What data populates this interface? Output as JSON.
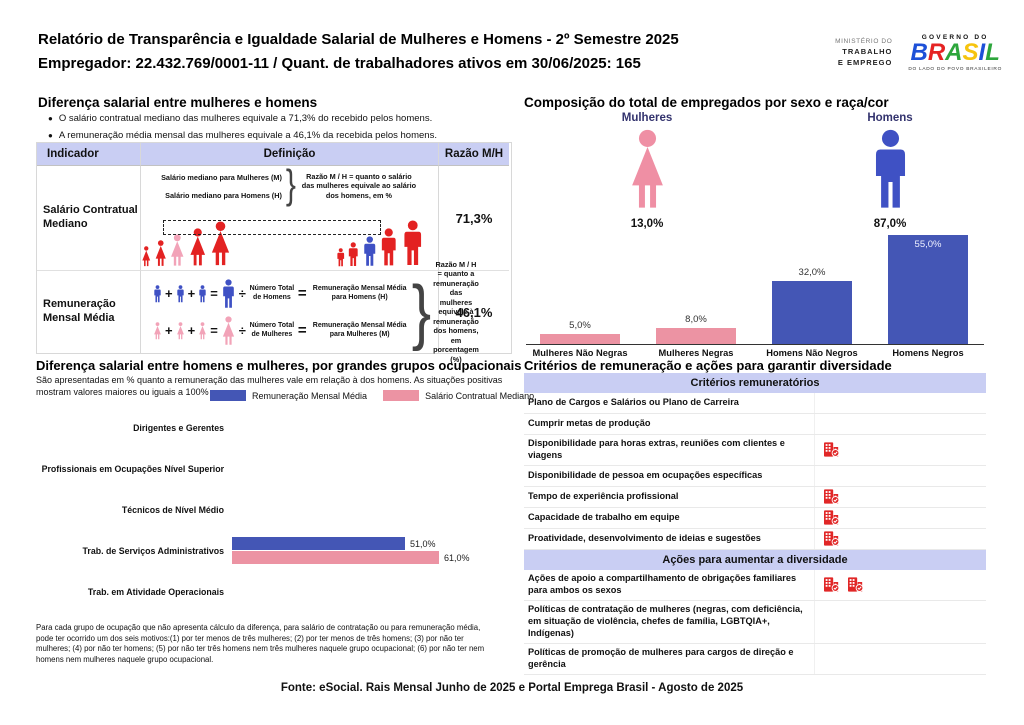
{
  "colors": {
    "accent_blue": "#4456b5",
    "accent_pink": "#ec93a3",
    "figure_red": "#e32222",
    "figure_pink": "#f2a3b8",
    "figure_blue": "#3f51c4",
    "icon_red": "#e12727",
    "header_bg": "#c9cef3",
    "heading_navy": "#33336e"
  },
  "header": {
    "title": "Relatório de Transparência e Igualdade Salarial de Mulheres e Homens - 2º Semestre 2025",
    "subtitle": "Empregador: 22.432.769/0001-11 / Quant. de trabalhadores ativos em 30/06/2025: 165",
    "ministry": {
      "dept": "MINISTÉRIO DO",
      "name1": "TRABALHO",
      "name2": "E EMPREGO"
    },
    "gov": {
      "top": "GOVERNO DO",
      "brand_letters": [
        {
          "ch": "B",
          "color": "#1d50d8"
        },
        {
          "ch": "R",
          "color": "#e52323"
        },
        {
          "ch": "A",
          "color": "#2da63c"
        },
        {
          "ch": "S",
          "color": "#f6c40e"
        },
        {
          "ch": "I",
          "color": "#1d50d8"
        },
        {
          "ch": "L",
          "color": "#2da63c"
        }
      ],
      "tagline": "DO LADO DO POVO BRASILEIRO"
    }
  },
  "pay_gap": {
    "title": "Diferença salarial entre mulheres e homens",
    "bullets": [
      "O salário contratual mediano das mulheres equivale a 71,3% do recebido pelos homens.",
      "A remuneração média mensal das mulheres equivale a 46,1% da recebida pelos homens."
    ],
    "table": {
      "col_indicator": "Indicador",
      "col_definition": "Definição",
      "col_ratio": "Razão M/H",
      "row1": {
        "indicator": "Salário Contratual Mediano",
        "label_women": "Salário mediano para Mulheres (M)",
        "label_men": "Salário mediano para Homens (H)",
        "note": "Razão M / H = quanto o salário das mulheres equivale ao salário dos homens, em %",
        "ratio": "71,3%"
      },
      "row2": {
        "indicator": "Remuneração Mensal Média",
        "men_divisor": "Número Total de Homens",
        "men_result": "Remuneração Mensal Média para Homens (H)",
        "women_divisor": "Número Total de Mulheres",
        "women_result": "Remuneração Mensal Média para Mulheres (M)",
        "note": "Razão M / H = quanto a remuneração das mulheres equivale à remuneração dos homens, em porcentagem (%)",
        "ratio": "46,1%"
      }
    }
  },
  "composition": {
    "title": "Composição do total de empregados por sexo e raça/cor",
    "groups": [
      {
        "label": "Mulheres",
        "value": 13.0,
        "value_label": "13,0%",
        "icon": "woman-icon",
        "color": "#ef8fa4"
      },
      {
        "label": "Homens",
        "value": 87.0,
        "value_label": "87,0%",
        "icon": "man-icon",
        "color": "#3f51c4"
      }
    ]
  },
  "occupational": {
    "title": "Diferença salarial entre homens e mulheres, por grandes grupos ocupacionais",
    "subtitle": "São apresentadas em % quanto a remuneração das mulheres vale em relação à dos homens. As situações positivas mostram valores maiores ou iguais a 100%",
    "footnote": "Para cada grupo de ocupação que não apresenta cálculo da diferença, para salário de contratação ou para remuneração média, pode ter ocorrido um dos seis motivos:(1) por ter menos de três mulheres; (2) por ter menos de três homens; (3) por não ter mulheres; (4) por não ter homens; (5) por não ter três homens nem três mulheres naquele grupo ocupacional; (6) por não ter nem homens nem mulheres naquele grupo ocupacional."
  },
  "criteria": {
    "title": "Critérios de remuneração e ações para garantir diversidade",
    "tables": [
      {
        "header": "Critérios remuneratórios",
        "rows": [
          {
            "label": "Plano de Cargos e Salários ou Plano de Carreira",
            "badges": 0
          },
          {
            "label": "Cumprir metas de produção",
            "badges": 0
          },
          {
            "label": "Disponibilidade para horas extras, reuniões com clientes e viagens",
            "badges": 1
          },
          {
            "label": "Disponibilidade de pessoa em ocupações específicas",
            "badges": 0
          },
          {
            "label": "Tempo de experiência profissional",
            "badges": 1
          },
          {
            "label": "Capacidade de trabalho em equipe",
            "badges": 1
          },
          {
            "label": "Proatividade, desenvolvimento de ideias e sugestões",
            "badges": 1
          }
        ]
      },
      {
        "header": "Ações para aumentar a diversidade",
        "rows": [
          {
            "label": "Ações de apoio a compartilhamento de obrigações familiares para ambos os sexos",
            "badges": 2
          },
          {
            "label": "Políticas de contratação de mulheres (negras, com deficiência, em situação de violência, chefes de família, LGBTQIA+, Indígenas)",
            "badges": 0
          },
          {
            "label": "Políticas de promoção de mulheres para cargos de direção e gerência",
            "badges": 0
          }
        ]
      }
    ]
  },
  "footer": "Fonte: eSocial. Rais Mensal Junho de 2025 e Portal Emprega Brasil - Agosto de 2025",
  "chart_data": [
    {
      "id": "composition-by-sex-race",
      "type": "bar",
      "title": "Composição do total de empregados por sexo e raça/cor",
      "categories": [
        "Mulheres Não Negras",
        "Mulheres Negras",
        "Homens Não Negros",
        "Homens Negros"
      ],
      "values": [
        5.0,
        8.0,
        32.0,
        55.0
      ],
      "value_labels": [
        "5,0%",
        "8,0%",
        "32,0%",
        "55,0%"
      ],
      "bar_colors": [
        "#ec93a3",
        "#ec93a3",
        "#4456b5",
        "#4456b5"
      ],
      "xlabel": "",
      "ylabel": "",
      "ylim": [
        0,
        60
      ],
      "grid": false,
      "legend_position": "none"
    },
    {
      "id": "pay-gap-by-occupation",
      "type": "bar-horizontal",
      "categories": [
        "Dirigentes e Gerentes",
        "Profissionais em Ocupações Nível Superior",
        "Técnicos de Nível Médio",
        "Trab. de Serviços Administrativos",
        "Trab. em Atividade Operacionais"
      ],
      "series": [
        {
          "name": "Remuneração Mensal Média",
          "color": "#4456b5",
          "values": [
            null,
            null,
            null,
            51.0,
            null
          ],
          "value_labels": [
            null,
            null,
            null,
            "51,0%",
            null
          ]
        },
        {
          "name": "Salário Contratual Mediano",
          "color": "#ec93a3",
          "values": [
            null,
            null,
            null,
            61.0,
            null
          ],
          "value_labels": [
            null,
            null,
            null,
            "61,0%",
            null
          ]
        }
      ],
      "xlabel": "",
      "ylabel": "",
      "xlim": [
        0,
        100
      ],
      "grid": false,
      "legend_position": "top"
    }
  ]
}
